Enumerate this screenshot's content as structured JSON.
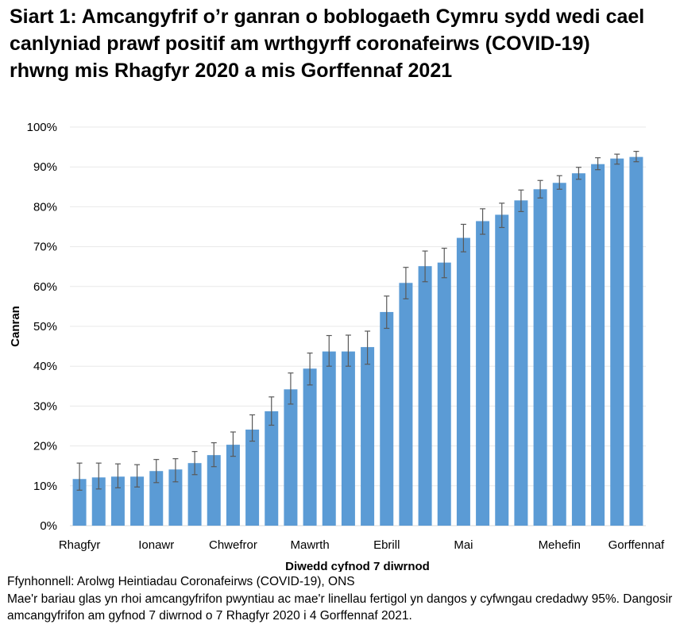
{
  "chart_data": {
    "type": "bar",
    "title": "Siart 1: Amcangyfrif o’r ganran o boblogaeth Cymru sydd wedi cael canlyniad prawf positif am wrthgyrff coronafeirws (COVID-19) rhwng mis Rhagfyr 2020 a mis Gorffennaf 2021",
    "xlabel": "Diwedd cyfnod 7 diwrnod",
    "ylabel": "Canran",
    "ylim": [
      0,
      100
    ],
    "yticks": [
      "0%",
      "10%",
      "20%",
      "30%",
      "40%",
      "50%",
      "60%",
      "70%",
      "80%",
      "90%",
      "100%"
    ],
    "x_tick_labels": [
      {
        "label": "Rhagfyr",
        "index": 0
      },
      {
        "label": "Ionawr",
        "index": 4
      },
      {
        "label": "Chwefror",
        "index": 8
      },
      {
        "label": "Mawrth",
        "index": 12
      },
      {
        "label": "Ebrill",
        "index": 16
      },
      {
        "label": "Mai",
        "index": 20
      },
      {
        "label": "Mehefin",
        "index": 25
      },
      {
        "label": "Gorffennaf",
        "index": 29
      }
    ],
    "grid": true,
    "bar_color": "#5b9bd5",
    "error_color": "#595959",
    "values": [
      11.7,
      12.1,
      12.3,
      12.3,
      13.7,
      14.1,
      15.7,
      17.7,
      20.3,
      24.1,
      28.7,
      34.2,
      39.4,
      43.7,
      43.7,
      44.8,
      53.6,
      60.9,
      65.1,
      66.0,
      72.2,
      76.4,
      78.0,
      81.6,
      84.4,
      86.0,
      88.4,
      90.7,
      92.1,
      92.5
    ],
    "ci_lower": [
      8.9,
      9.2,
      9.5,
      9.7,
      10.8,
      11.0,
      12.8,
      14.8,
      17.4,
      21.2,
      25.2,
      30.5,
      35.3,
      40.0,
      40.0,
      40.5,
      49.5,
      56.9,
      61.2,
      62.2,
      68.7,
      73.1,
      74.8,
      78.8,
      82.2,
      84.4,
      86.9,
      89.3,
      90.7,
      91.3
    ],
    "ci_upper": [
      15.7,
      15.7,
      15.5,
      15.3,
      16.6,
      16.8,
      18.6,
      20.8,
      23.5,
      27.8,
      32.3,
      38.3,
      43.3,
      47.7,
      47.8,
      48.8,
      57.6,
      64.8,
      68.9,
      69.6,
      75.6,
      79.5,
      80.9,
      84.2,
      86.6,
      87.8,
      89.9,
      92.3,
      93.2,
      93.9
    ]
  },
  "footer": {
    "source": "Ffynhonnell: Arolwg Heintiadau Coronafeirws (COVID-19), ONS",
    "note": "Mae'r bariau glas yn rhoi amcangyfrifon pwyntiau ac mae'r linellau fertigol yn dangos y cyfwngau credadwy 95%. Dangosir amcangyfrifon am gyfnod 7 diwrnod o 7 Rhagfyr 2020 i 4 Gorffennaf 2021."
  }
}
